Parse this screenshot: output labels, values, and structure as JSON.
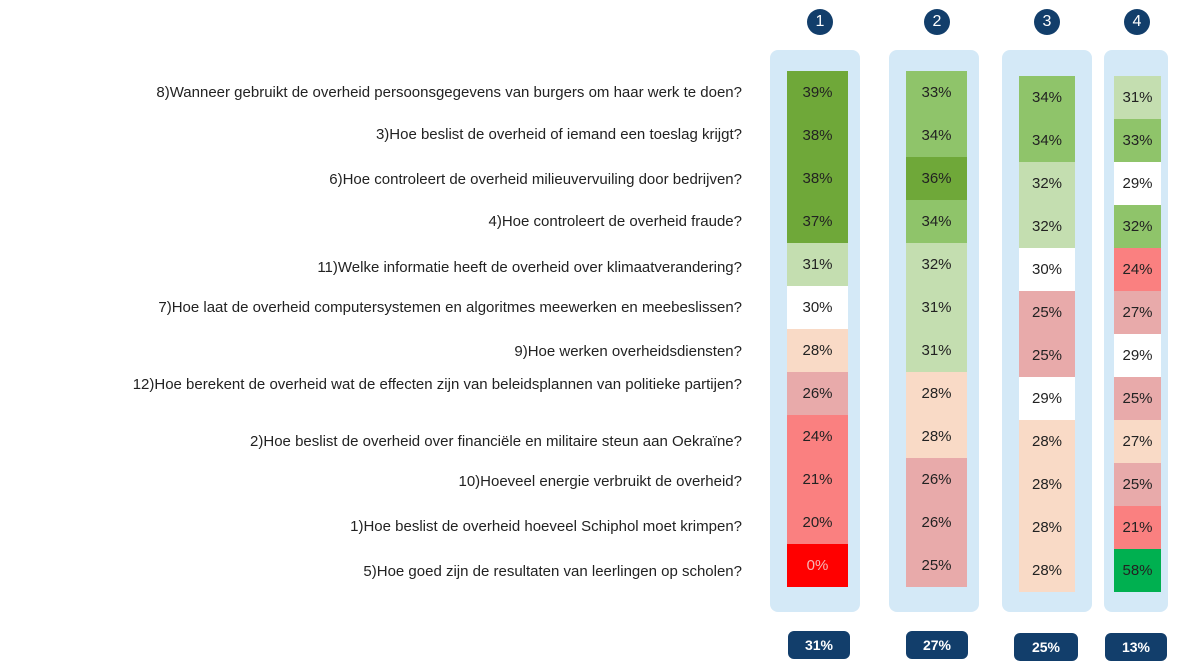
{
  "columns": [
    {
      "header": "1",
      "footer": "31%",
      "cells": [
        "39%",
        "38%",
        "38%",
        "37%",
        "31%",
        "30%",
        "28%",
        "26%",
        "24%",
        "21%",
        "20%",
        "0%"
      ],
      "colors": [
        "#6fa839",
        "#6fa839",
        "#6fa839",
        "#6fa839",
        "#c4deb0",
        "#ffffff",
        "#f9dac6",
        "#e8aaaa",
        "#fa8080",
        "#fa8080",
        "#fa8080",
        "#ff0000"
      ]
    },
    {
      "header": "2",
      "footer": "27%",
      "cells": [
        "33%",
        "34%",
        "36%",
        "34%",
        "32%",
        "31%",
        "31%",
        "28%",
        "28%",
        "26%",
        "26%",
        "25%"
      ],
      "colors": [
        "#8fc46a",
        "#8fc46a",
        "#6fa839",
        "#8fc46a",
        "#c4deb0",
        "#c4deb0",
        "#c4deb0",
        "#f9dac6",
        "#f9dac6",
        "#e8aaaa",
        "#e8aaaa",
        "#e8aaaa"
      ]
    },
    {
      "header": "3",
      "footer": "25%",
      "cells": [
        "34%",
        "34%",
        "32%",
        "32%",
        "30%",
        "25%",
        "25%",
        "29%",
        "28%",
        "28%",
        "28%",
        "28%"
      ],
      "colors": [
        "#8fc46a",
        "#8fc46a",
        "#c4deb0",
        "#c4deb0",
        "#ffffff",
        "#e8aaaa",
        "#e8aaaa",
        "#ffffff",
        "#f9dac6",
        "#f9dac6",
        "#f9dac6",
        "#f9dac6"
      ]
    },
    {
      "header": "4",
      "footer": "13%",
      "cells": [
        "31%",
        "33%",
        "29%",
        "32%",
        "24%",
        "27%",
        "29%",
        "25%",
        "27%",
        "25%",
        "21%",
        "58%"
      ],
      "colors": [
        "#c4deb0",
        "#8fc46a",
        "#ffffff",
        "#8fc46a",
        "#fa8080",
        "#e8aaaa",
        "#ffffff",
        "#e8aaaa",
        "#f9dac6",
        "#e8aaaa",
        "#fa8080",
        "#00b050"
      ]
    }
  ],
  "questions": [
    "8)Wanneer gebruikt de overheid persoonsgegevens van burgers om haar werk te doen?",
    "3)Hoe beslist de overheid of iemand een toeslag krijgt?",
    "6)Hoe controleert de overheid milieuvervuiling door bedrijven?",
    "4)Hoe controleert de overheid fraude?",
    "11)Welke informatie heeft de overheid over klimaatverandering?",
    "7)Hoe laat de overheid computersystemen en algoritmes meewerken en meebeslissen?",
    "9)Hoe werken overheidsdiensten?",
    "12)Hoe berekent de overheid wat de effecten zijn van beleidsplannen van politieke partijen?",
    "2)Hoe beslist de overheid over financiële en militaire steun aan Oekraïne?",
    "10)Hoeveel energie verbruikt de overheid?",
    "1)Hoe beslist de overheid hoeveel Schiphol moet krimpen?",
    "5)Hoe goed zijn de resultaten van leerlingen op scholen?"
  ]
}
